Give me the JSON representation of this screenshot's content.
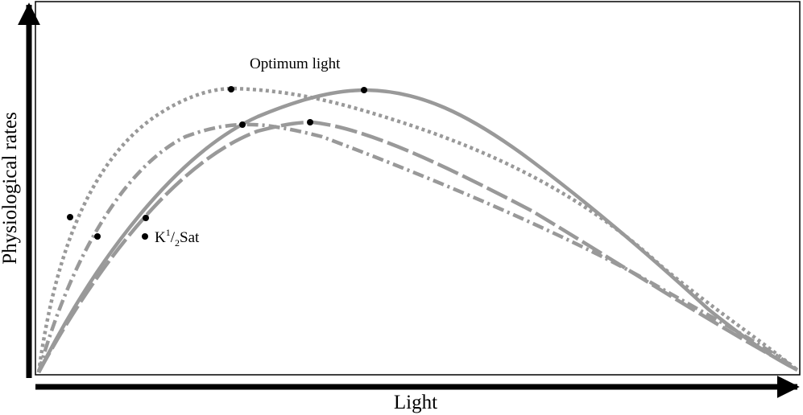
{
  "xlabel": "Light",
  "ylabel": "Physiological rates",
  "annotations": {
    "optimum": "Optimum light",
    "ksat": {
      "prefix": "K",
      "sup": "1",
      "slash": "/",
      "sub": "2",
      "suffix": "Sat"
    }
  },
  "colors": {
    "curve": "#999999",
    "marker": "#000000",
    "axis": "#000000",
    "frame": "#000000"
  },
  "curves": [
    {
      "style": "dotted"
    },
    {
      "style": "dash-dot"
    },
    {
      "style": "solid"
    },
    {
      "style": "long-dash"
    }
  ]
}
